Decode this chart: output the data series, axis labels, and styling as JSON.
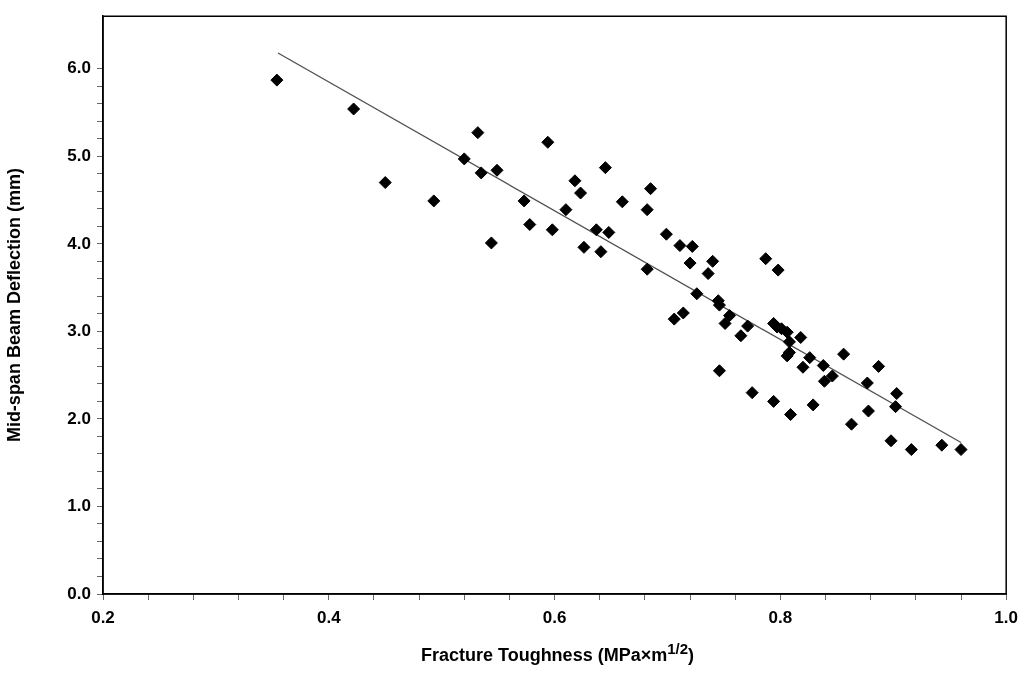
{
  "chart_data": {
    "type": "scatter",
    "xlabel": "Fracture Toughness (MPa×m$^{1/2}$)",
    "ylabel": "Mid-span Beam Deflection (mm)",
    "xlim": [
      0.2,
      1.0
    ],
    "ylim": [
      0,
      6.6
    ],
    "xticks": [
      0.2,
      {
        "value": 0.24,
        "label": null
      },
      {
        "value": 0.28,
        "label": null
      },
      {
        "value": 0.32,
        "label": null
      },
      {
        "value": 0.36,
        "label": null
      },
      0.4,
      {
        "value": 0.44,
        "label": null
      },
      {
        "value": 0.48,
        "label": null
      },
      {
        "value": 0.52,
        "label": null
      },
      {
        "value": 0.56,
        "label": null
      },
      0.6,
      {
        "value": 0.64,
        "label": null
      },
      {
        "value": 0.68,
        "label": null
      },
      {
        "value": 0.72,
        "label": null
      },
      {
        "value": 0.76,
        "label": null
      },
      0.8,
      {
        "value": 0.84,
        "label": null
      },
      {
        "value": 0.88,
        "label": null
      },
      {
        "value": 0.92,
        "label": null
      },
      {
        "value": 0.96,
        "label": null
      },
      {
        "value": 1.0,
        "label": "1.0"
      }
    ],
    "yticks": [
      {
        "value": 0,
        "label": "0.0"
      },
      {
        "value": 0.2,
        "label": null
      },
      {
        "value": 0.4,
        "label": null
      },
      {
        "value": 0.6,
        "label": null
      },
      {
        "value": 0.8,
        "label": null
      },
      {
        "value": 1,
        "label": "1.0"
      },
      {
        "value": 1.2,
        "label": null
      },
      {
        "value": 1.4,
        "label": null
      },
      {
        "value": 1.6,
        "label": null
      },
      {
        "value": 1.8,
        "label": null
      },
      {
        "value": 2,
        "label": "2.0"
      },
      {
        "value": 2.2,
        "label": null
      },
      {
        "value": 2.4,
        "label": null
      },
      {
        "value": 2.6,
        "label": null
      },
      {
        "value": 2.8,
        "label": null
      },
      {
        "value": 3,
        "label": "3.0"
      },
      {
        "value": 3.2,
        "label": null
      },
      {
        "value": 3.4,
        "label": null
      },
      {
        "value": 3.6,
        "label": null
      },
      {
        "value": 3.8,
        "label": null
      },
      {
        "value": 4,
        "label": "4.0"
      },
      {
        "value": 4.2,
        "label": null
      },
      {
        "value": 4.4,
        "label": null
      },
      {
        "value": 4.6,
        "label": null
      },
      {
        "value": 4.8,
        "label": null
      },
      {
        "value": 5,
        "label": "5.0"
      },
      {
        "value": 5.2,
        "label": null
      },
      {
        "value": 5.4,
        "label": null
      },
      {
        "value": 5.6,
        "label": null
      },
      {
        "value": 5.8,
        "label": null
      },
      {
        "value": 6,
        "label": "6.0"
      }
    ],
    "grid": false,
    "legend": false,
    "marker": "diamond",
    "series": [
      {
        "type": "scatter",
        "color": "#000000",
        "x": [
          0.354,
          0.422,
          0.45,
          0.493,
          0.52,
          0.532,
          0.535,
          0.549,
          0.544,
          0.573,
          0.578,
          0.594,
          0.598,
          0.618,
          0.623,
          0.645,
          0.61,
          0.637,
          0.648,
          0.626,
          0.641,
          0.66,
          0.685,
          0.682,
          0.699,
          0.711,
          0.722,
          0.72,
          0.74,
          0.736,
          0.682,
          0.726,
          0.745,
          0.746,
          0.706,
          0.714,
          0.755,
          0.751,
          0.771,
          0.765,
          0.787,
          0.798,
          0.794,
          0.797,
          0.801,
          0.806,
          0.808,
          0.806,
          0.808,
          0.746,
          0.775,
          0.794,
          0.809,
          0.818,
          0.826,
          0.82,
          0.838,
          0.839,
          0.846,
          0.856,
          0.887,
          0.877,
          0.903,
          0.902,
          0.878,
          0.829,
          0.863,
          0.898,
          0.916,
          0.943,
          0.96
        ],
        "values": [
          5.87,
          5.54,
          4.7,
          4.49,
          4.97,
          5.27,
          4.81,
          4.84,
          4.01,
          4.49,
          4.22,
          5.16,
          4.16,
          4.72,
          4.58,
          4.87,
          4.39,
          4.16,
          4.13,
          3.96,
          3.91,
          4.48,
          4.63,
          4.39,
          4.11,
          3.98,
          3.97,
          3.78,
          3.8,
          3.66,
          3.71,
          3.43,
          3.35,
          3.3,
          3.14,
          3.21,
          3.18,
          3.09,
          3.06,
          2.95,
          3.83,
          3.7,
          3.09,
          3.05,
          3.03,
          2.99,
          2.88,
          2.72,
          2.76,
          2.55,
          2.3,
          2.2,
          2.05,
          2.93,
          2.7,
          2.59,
          2.61,
          2.43,
          2.49,
          2.74,
          2.6,
          2.41,
          2.29,
          2.14,
          2.09,
          2.16,
          1.94,
          1.75,
          1.65,
          1.7,
          1.65
        ]
      },
      {
        "type": "line",
        "color": "#505050",
        "marker": "none",
        "x": [
          0.355,
          0.96
        ],
        "values": [
          6.18,
          1.73
        ]
      }
    ]
  }
}
